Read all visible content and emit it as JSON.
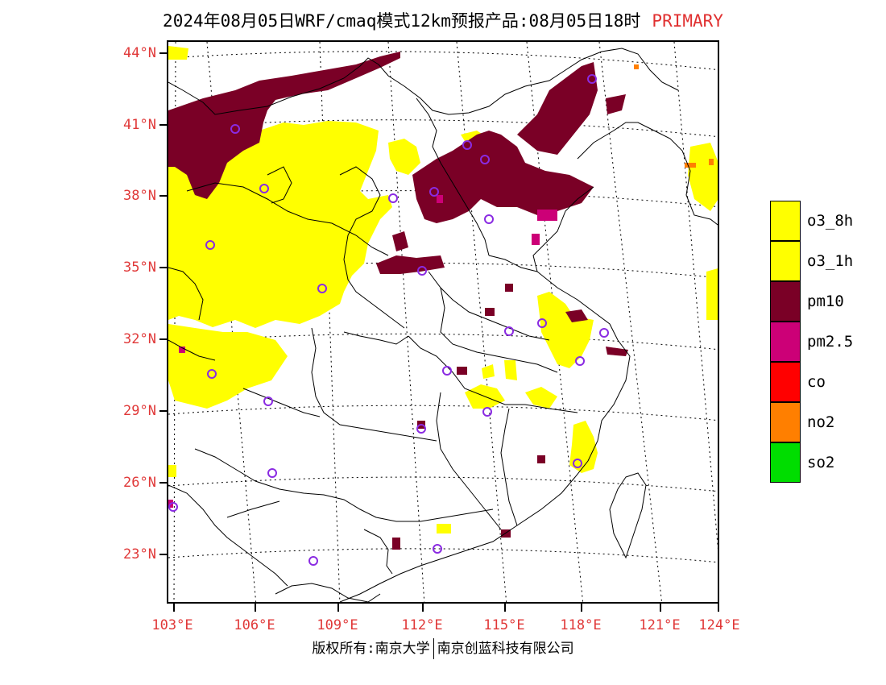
{
  "title": {
    "main": "2024年08月05日WRF/cmaq模式12km预报产品:08月05日18时",
    "tag": "PRIMARY"
  },
  "map": {
    "lat_labels": [
      "44°N",
      "41°N",
      "38°N",
      "35°N",
      "32°N",
      "29°N",
      "26°N",
      "23°N"
    ],
    "lon_labels": [
      "103°E",
      "106°E",
      "109°E",
      "112°E",
      "115°E",
      "118°E",
      "121°E",
      "124°E"
    ],
    "stations": "circle-icon"
  },
  "legend": {
    "items": [
      {
        "label": "o3_8h",
        "color": "#ffff00"
      },
      {
        "label": "o3_1h",
        "color": "#ffff00"
      },
      {
        "label": "pm10",
        "color": "#7a0026"
      },
      {
        "label": "pm2.5",
        "color": "#cc0077"
      },
      {
        "label": "co",
        "color": "#ff0000"
      },
      {
        "label": "no2",
        "color": "#ff7f00"
      },
      {
        "label": "so2",
        "color": "#00dd00"
      }
    ]
  },
  "footer": {
    "left": "版权所有:南京大学",
    "right": "南京创蓝科技有限公司"
  }
}
